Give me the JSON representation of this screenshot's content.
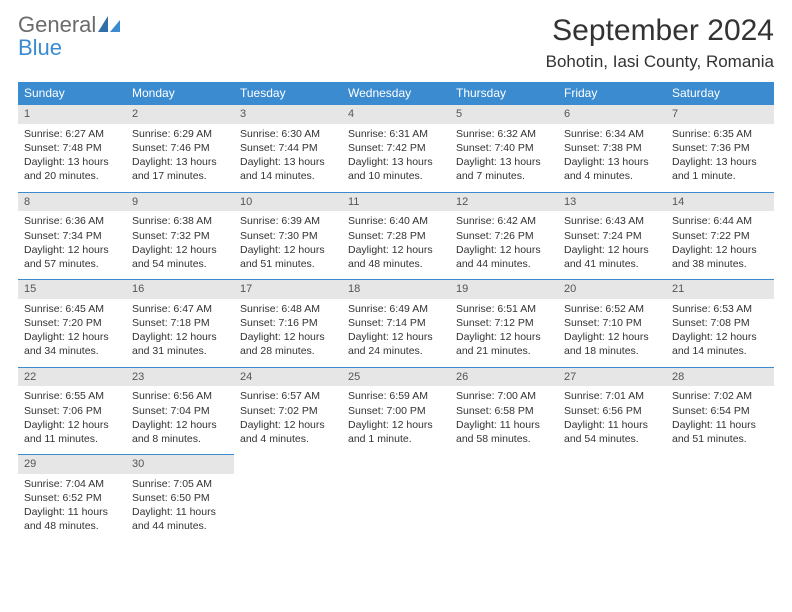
{
  "logo": {
    "general": "General",
    "blue": "Blue"
  },
  "title": "September 2024",
  "location": "Bohotin, Iasi County, Romania",
  "colors": {
    "accent": "#3b8bd0",
    "header_bg": "#3b8bd0",
    "header_text": "#ffffff",
    "daynum_bg": "#e6e6e6",
    "daynum_border": "#3b8bd0",
    "text": "#333333",
    "logo_gray": "#6b6b6b",
    "background": "#ffffff"
  },
  "typography": {
    "title_fontsize": 30,
    "location_fontsize": 17,
    "dayheader_fontsize": 12,
    "cell_fontsize": 10.5
  },
  "dayHeaders": [
    "Sunday",
    "Monday",
    "Tuesday",
    "Wednesday",
    "Thursday",
    "Friday",
    "Saturday"
  ],
  "weeks": [
    [
      {
        "n": "1",
        "sunrise": "Sunrise: 6:27 AM",
        "sunset": "Sunset: 7:48 PM",
        "day1": "Daylight: 13 hours",
        "day2": "and 20 minutes."
      },
      {
        "n": "2",
        "sunrise": "Sunrise: 6:29 AM",
        "sunset": "Sunset: 7:46 PM",
        "day1": "Daylight: 13 hours",
        "day2": "and 17 minutes."
      },
      {
        "n": "3",
        "sunrise": "Sunrise: 6:30 AM",
        "sunset": "Sunset: 7:44 PM",
        "day1": "Daylight: 13 hours",
        "day2": "and 14 minutes."
      },
      {
        "n": "4",
        "sunrise": "Sunrise: 6:31 AM",
        "sunset": "Sunset: 7:42 PM",
        "day1": "Daylight: 13 hours",
        "day2": "and 10 minutes."
      },
      {
        "n": "5",
        "sunrise": "Sunrise: 6:32 AM",
        "sunset": "Sunset: 7:40 PM",
        "day1": "Daylight: 13 hours",
        "day2": "and 7 minutes."
      },
      {
        "n": "6",
        "sunrise": "Sunrise: 6:34 AM",
        "sunset": "Sunset: 7:38 PM",
        "day1": "Daylight: 13 hours",
        "day2": "and 4 minutes."
      },
      {
        "n": "7",
        "sunrise": "Sunrise: 6:35 AM",
        "sunset": "Sunset: 7:36 PM",
        "day1": "Daylight: 13 hours",
        "day2": "and 1 minute."
      }
    ],
    [
      {
        "n": "8",
        "sunrise": "Sunrise: 6:36 AM",
        "sunset": "Sunset: 7:34 PM",
        "day1": "Daylight: 12 hours",
        "day2": "and 57 minutes."
      },
      {
        "n": "9",
        "sunrise": "Sunrise: 6:38 AM",
        "sunset": "Sunset: 7:32 PM",
        "day1": "Daylight: 12 hours",
        "day2": "and 54 minutes."
      },
      {
        "n": "10",
        "sunrise": "Sunrise: 6:39 AM",
        "sunset": "Sunset: 7:30 PM",
        "day1": "Daylight: 12 hours",
        "day2": "and 51 minutes."
      },
      {
        "n": "11",
        "sunrise": "Sunrise: 6:40 AM",
        "sunset": "Sunset: 7:28 PM",
        "day1": "Daylight: 12 hours",
        "day2": "and 48 minutes."
      },
      {
        "n": "12",
        "sunrise": "Sunrise: 6:42 AM",
        "sunset": "Sunset: 7:26 PM",
        "day1": "Daylight: 12 hours",
        "day2": "and 44 minutes."
      },
      {
        "n": "13",
        "sunrise": "Sunrise: 6:43 AM",
        "sunset": "Sunset: 7:24 PM",
        "day1": "Daylight: 12 hours",
        "day2": "and 41 minutes."
      },
      {
        "n": "14",
        "sunrise": "Sunrise: 6:44 AM",
        "sunset": "Sunset: 7:22 PM",
        "day1": "Daylight: 12 hours",
        "day2": "and 38 minutes."
      }
    ],
    [
      {
        "n": "15",
        "sunrise": "Sunrise: 6:45 AM",
        "sunset": "Sunset: 7:20 PM",
        "day1": "Daylight: 12 hours",
        "day2": "and 34 minutes."
      },
      {
        "n": "16",
        "sunrise": "Sunrise: 6:47 AM",
        "sunset": "Sunset: 7:18 PM",
        "day1": "Daylight: 12 hours",
        "day2": "and 31 minutes."
      },
      {
        "n": "17",
        "sunrise": "Sunrise: 6:48 AM",
        "sunset": "Sunset: 7:16 PM",
        "day1": "Daylight: 12 hours",
        "day2": "and 28 minutes."
      },
      {
        "n": "18",
        "sunrise": "Sunrise: 6:49 AM",
        "sunset": "Sunset: 7:14 PM",
        "day1": "Daylight: 12 hours",
        "day2": "and 24 minutes."
      },
      {
        "n": "19",
        "sunrise": "Sunrise: 6:51 AM",
        "sunset": "Sunset: 7:12 PM",
        "day1": "Daylight: 12 hours",
        "day2": "and 21 minutes."
      },
      {
        "n": "20",
        "sunrise": "Sunrise: 6:52 AM",
        "sunset": "Sunset: 7:10 PM",
        "day1": "Daylight: 12 hours",
        "day2": "and 18 minutes."
      },
      {
        "n": "21",
        "sunrise": "Sunrise: 6:53 AM",
        "sunset": "Sunset: 7:08 PM",
        "day1": "Daylight: 12 hours",
        "day2": "and 14 minutes."
      }
    ],
    [
      {
        "n": "22",
        "sunrise": "Sunrise: 6:55 AM",
        "sunset": "Sunset: 7:06 PM",
        "day1": "Daylight: 12 hours",
        "day2": "and 11 minutes."
      },
      {
        "n": "23",
        "sunrise": "Sunrise: 6:56 AM",
        "sunset": "Sunset: 7:04 PM",
        "day1": "Daylight: 12 hours",
        "day2": "and 8 minutes."
      },
      {
        "n": "24",
        "sunrise": "Sunrise: 6:57 AM",
        "sunset": "Sunset: 7:02 PM",
        "day1": "Daylight: 12 hours",
        "day2": "and 4 minutes."
      },
      {
        "n": "25",
        "sunrise": "Sunrise: 6:59 AM",
        "sunset": "Sunset: 7:00 PM",
        "day1": "Daylight: 12 hours",
        "day2": "and 1 minute."
      },
      {
        "n": "26",
        "sunrise": "Sunrise: 7:00 AM",
        "sunset": "Sunset: 6:58 PM",
        "day1": "Daylight: 11 hours",
        "day2": "and 58 minutes."
      },
      {
        "n": "27",
        "sunrise": "Sunrise: 7:01 AM",
        "sunset": "Sunset: 6:56 PM",
        "day1": "Daylight: 11 hours",
        "day2": "and 54 minutes."
      },
      {
        "n": "28",
        "sunrise": "Sunrise: 7:02 AM",
        "sunset": "Sunset: 6:54 PM",
        "day1": "Daylight: 11 hours",
        "day2": "and 51 minutes."
      }
    ],
    [
      {
        "n": "29",
        "sunrise": "Sunrise: 7:04 AM",
        "sunset": "Sunset: 6:52 PM",
        "day1": "Daylight: 11 hours",
        "day2": "and 48 minutes."
      },
      {
        "n": "30",
        "sunrise": "Sunrise: 7:05 AM",
        "sunset": "Sunset: 6:50 PM",
        "day1": "Daylight: 11 hours",
        "day2": "and 44 minutes."
      },
      {
        "empty": true
      },
      {
        "empty": true
      },
      {
        "empty": true
      },
      {
        "empty": true
      },
      {
        "empty": true
      }
    ]
  ]
}
